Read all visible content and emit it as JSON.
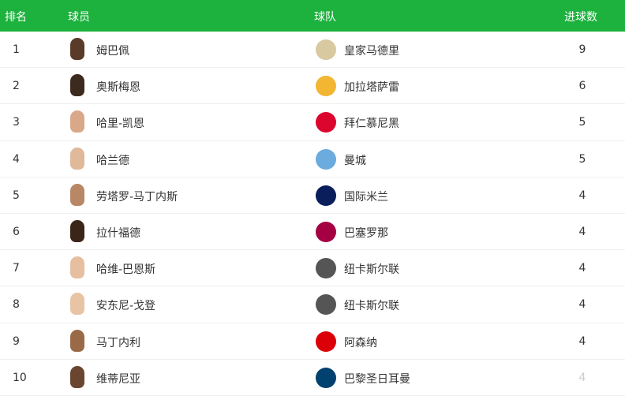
{
  "header": {
    "rank": "排名",
    "player": "球员",
    "team": "球队",
    "goals": "进球数"
  },
  "accent": "#1db13e",
  "rows": [
    {
      "rank": "1",
      "player": "姆巴佩",
      "team": "皇家马德里",
      "goals": "9",
      "skin": "#5a3a28",
      "crest": "#d8c9a0"
    },
    {
      "rank": "2",
      "player": "奥斯梅恩",
      "team": "加拉塔萨雷",
      "goals": "6",
      "skin": "#3d2a1f",
      "crest": "#f2b632"
    },
    {
      "rank": "3",
      "player": "哈里-凯恩",
      "team": "拜仁慕尼黑",
      "goals": "5",
      "skin": "#d9a888",
      "crest": "#dc052d"
    },
    {
      "rank": "4",
      "player": "哈兰德",
      "team": "曼城",
      "goals": "5",
      "skin": "#e0b89a",
      "crest": "#6cabdd"
    },
    {
      "rank": "5",
      "player": "劳塔罗-马丁内斯",
      "team": "国际米兰",
      "goals": "4",
      "skin": "#b88866",
      "crest": "#0a1e5c"
    },
    {
      "rank": "6",
      "player": "拉什福德",
      "team": "巴塞罗那",
      "goals": "4",
      "skin": "#3a2518",
      "crest": "#a50044"
    },
    {
      "rank": "7",
      "player": "哈维-巴恩斯",
      "team": "纽卡斯尔联",
      "goals": "4",
      "skin": "#e5bfa0",
      "crest": "#555555"
    },
    {
      "rank": "8",
      "player": "安东尼-戈登",
      "team": "纽卡斯尔联",
      "goals": "4",
      "skin": "#e8c4a4",
      "crest": "#555555"
    },
    {
      "rank": "9",
      "player": "马丁内利",
      "team": "阿森纳",
      "goals": "4",
      "skin": "#9a6a48",
      "crest": "#db0007"
    },
    {
      "rank": "10",
      "player": "维蒂尼亚",
      "team": "巴黎圣日耳曼",
      "goals": "4",
      "skin": "#6a4530",
      "crest": "#004170"
    }
  ]
}
